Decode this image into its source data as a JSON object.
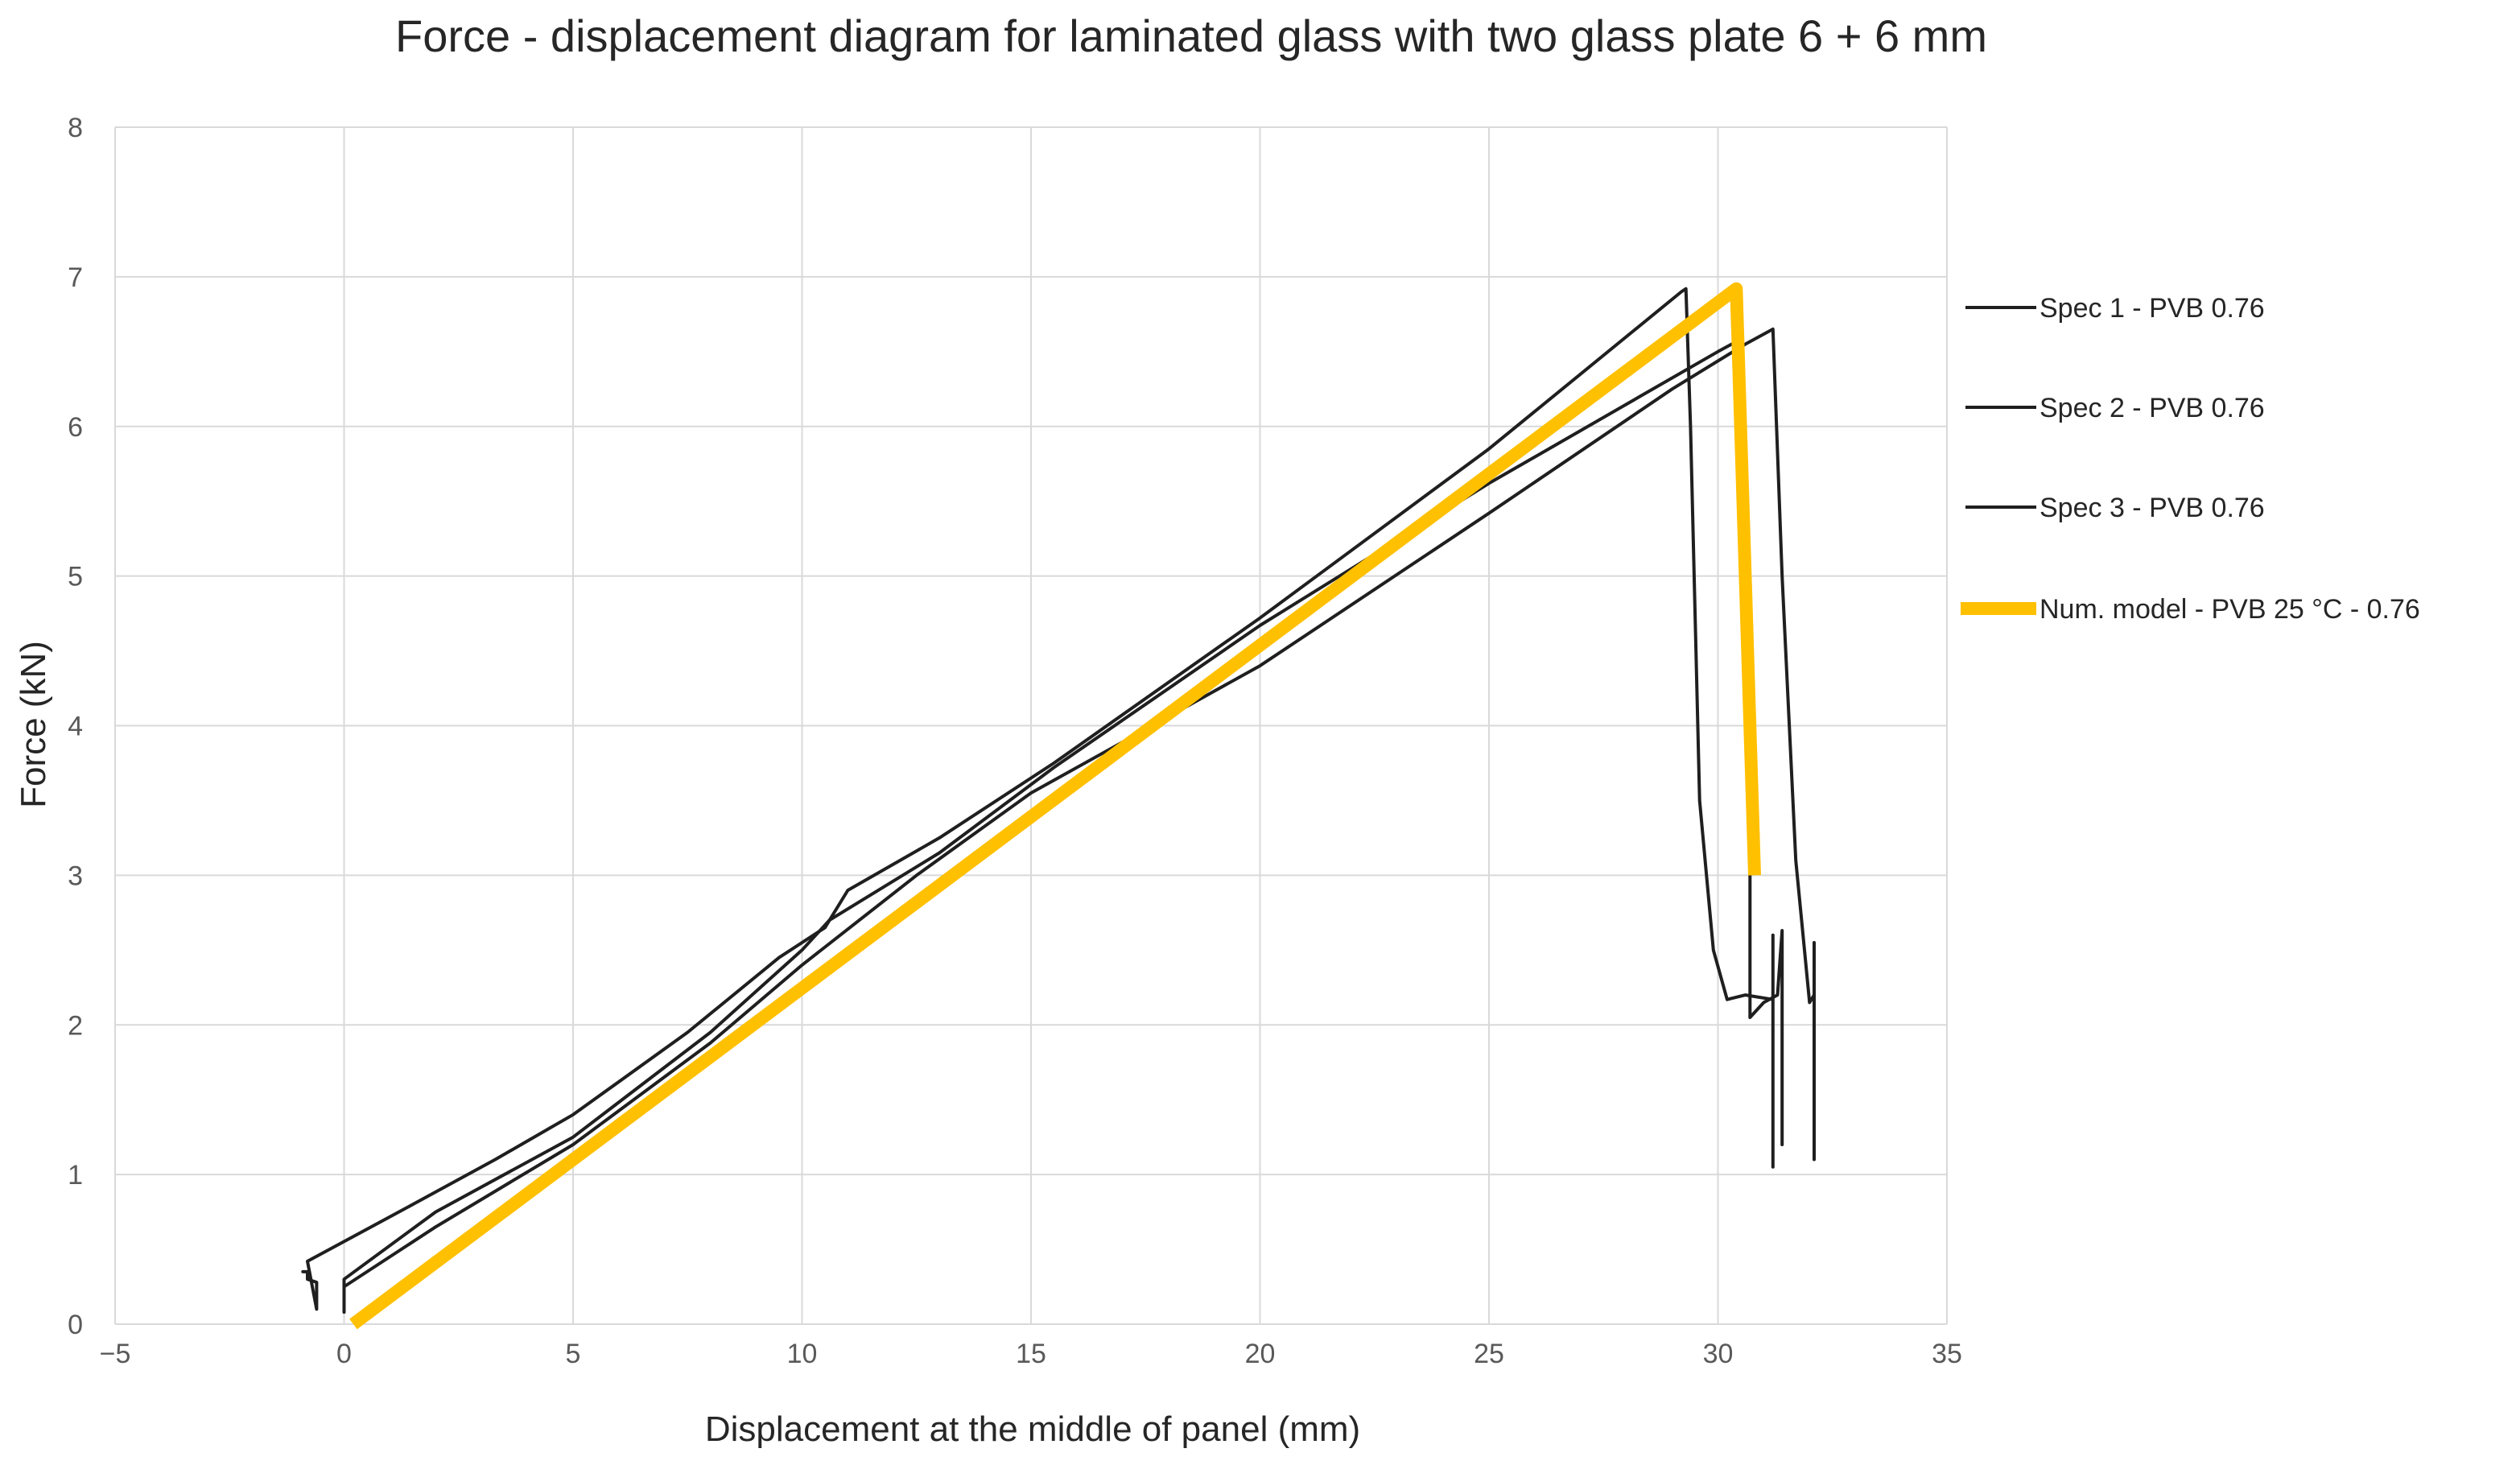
{
  "chart_data": {
    "type": "line",
    "title": "Force - displacement diagram for laminated glass with two glass plate 6 + 6 mm",
    "xlabel": "Displacement  at the middle of panel (mm)",
    "ylabel": "Force (kN)",
    "xlim": [
      -5,
      35
    ],
    "ylim": [
      0,
      8
    ],
    "xticks": [
      "−5",
      "0",
      "5",
      "10",
      "15",
      "20",
      "25",
      "30",
      "35"
    ],
    "yticks": [
      "0",
      "1",
      "2",
      "3",
      "4",
      "5",
      "6",
      "7",
      "8"
    ],
    "grid": true,
    "legend_position": "right",
    "series": [
      {
        "name": "Spec 1 - PVB 0.76",
        "color": "#1f1f1f",
        "points": [
          [
            -0.9,
            0.35
          ],
          [
            -0.8,
            0.35
          ],
          [
            -0.8,
            0.3
          ],
          [
            -0.6,
            0.28
          ],
          [
            -0.6,
            0.1
          ],
          [
            -0.8,
            0.42
          ],
          [
            1.5,
            0.8
          ],
          [
            3.3,
            1.1
          ],
          [
            5.0,
            1.4
          ],
          [
            7.5,
            1.95
          ],
          [
            9.5,
            2.45
          ],
          [
            10.5,
            2.65
          ],
          [
            11.0,
            2.9
          ],
          [
            13.0,
            3.25
          ],
          [
            15.5,
            3.75
          ],
          [
            20.0,
            4.72
          ],
          [
            25.0,
            5.85
          ],
          [
            29.2,
            6.9
          ],
          [
            29.3,
            6.92
          ],
          [
            29.4,
            6.0
          ],
          [
            29.6,
            3.5
          ],
          [
            29.9,
            2.5
          ],
          [
            30.2,
            2.17
          ],
          [
            30.6,
            2.2
          ],
          [
            31.2,
            2.17
          ],
          [
            31.2,
            2.6
          ],
          [
            31.2,
            1.05
          ]
        ]
      },
      {
        "name": "Spec 2 - PVB 0.76",
        "color": "#1f1f1f",
        "points": [
          [
            0.0,
            0.22
          ],
          [
            0.0,
            0.3
          ],
          [
            2.0,
            0.75
          ],
          [
            5.0,
            1.25
          ],
          [
            8.0,
            1.95
          ],
          [
            10.0,
            2.5
          ],
          [
            10.6,
            2.7
          ],
          [
            13.0,
            3.15
          ],
          [
            15.5,
            3.72
          ],
          [
            20.0,
            4.67
          ],
          [
            25.0,
            5.62
          ],
          [
            30.0,
            6.5
          ],
          [
            30.3,
            6.55
          ],
          [
            30.5,
            6.52
          ],
          [
            30.7,
            3.2
          ],
          [
            30.7,
            2.05
          ],
          [
            31.0,
            2.15
          ],
          [
            31.3,
            2.2
          ],
          [
            31.4,
            2.63
          ],
          [
            31.4,
            1.2
          ],
          [
            31.4,
            2.2
          ]
        ]
      },
      {
        "name": "Spec 3 - PVB 0.76",
        "color": "#1f1f1f",
        "points": [
          [
            0.0,
            0.08
          ],
          [
            0.0,
            0.25
          ],
          [
            2.0,
            0.65
          ],
          [
            5.0,
            1.2
          ],
          [
            8.0,
            1.88
          ],
          [
            10.0,
            2.4
          ],
          [
            12.5,
            3.0
          ],
          [
            15.0,
            3.55
          ],
          [
            20.0,
            4.4
          ],
          [
            25.0,
            5.42
          ],
          [
            29.0,
            6.25
          ],
          [
            30.6,
            6.55
          ],
          [
            31.2,
            6.65
          ],
          [
            31.4,
            5.0
          ],
          [
            31.7,
            3.1
          ],
          [
            32.0,
            2.15
          ],
          [
            32.1,
            2.2
          ],
          [
            32.1,
            2.55
          ],
          [
            32.1,
            1.1
          ],
          [
            32.1,
            1.2
          ]
        ]
      },
      {
        "name": "Num. model  - PVB 25 °C - 0.76",
        "color": "#ffc000",
        "points": [
          [
            0.2,
            0.0
          ],
          [
            30.4,
            6.92
          ],
          [
            30.8,
            3.0
          ]
        ]
      }
    ]
  }
}
